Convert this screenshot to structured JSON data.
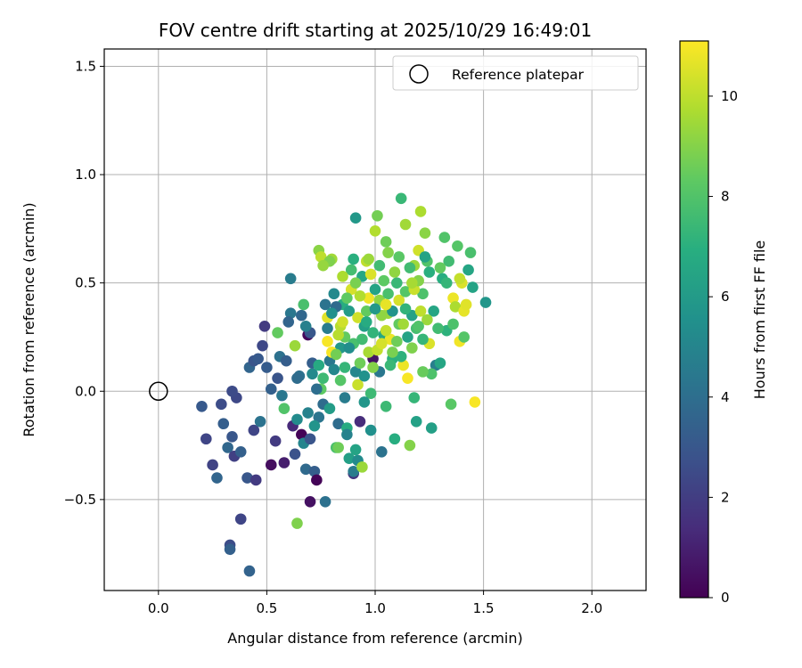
{
  "chart_data": {
    "type": "scatter",
    "title": "FOV centre drift starting at 2025/10/29 16:49:01",
    "xlabel": "Angular distance from reference (arcmin)",
    "ylabel": "Rotation from reference (arcmin)",
    "xlim": [
      -0.25,
      2.25
    ],
    "ylim": [
      -0.92,
      1.58
    ],
    "xticks": [
      0.0,
      0.5,
      1.0,
      1.5,
      2.0
    ],
    "xtick_labels": [
      "0.0",
      "0.5",
      "1.0",
      "1.5",
      "2.0"
    ],
    "yticks": [
      -0.5,
      0.0,
      0.5,
      1.0,
      1.5
    ],
    "ytick_labels": [
      "−0.5",
      "0.0",
      "0.5",
      "1.0",
      "1.5"
    ],
    "grid": true,
    "legend": {
      "position": "top-right",
      "entries": [
        {
          "label": "Reference platepar",
          "marker": "open-circle"
        }
      ]
    },
    "reference_point": {
      "x": 0.0,
      "y": 0.0
    },
    "colorbar": {
      "label": "Hours from first FF file",
      "min": 0,
      "max": 11.1,
      "ticks": [
        0,
        2,
        4,
        6,
        8,
        10
      ],
      "tick_labels": [
        "0",
        "2",
        "4",
        "6",
        "8",
        "10"
      ],
      "colormap": "viridis"
    },
    "points": [
      {
        "x": 0.2,
        "y": -0.07,
        "t": 3.1
      },
      {
        "x": 0.22,
        "y": -0.22,
        "t": 2.3
      },
      {
        "x": 0.25,
        "y": -0.34,
        "t": 2.2
      },
      {
        "x": 0.27,
        "y": -0.4,
        "t": 3.6
      },
      {
        "x": 0.29,
        "y": -0.06,
        "t": 2.6
      },
      {
        "x": 0.3,
        "y": -0.15,
        "t": 3.3
      },
      {
        "x": 0.32,
        "y": -0.26,
        "t": 3.7
      },
      {
        "x": 0.33,
        "y": -0.71,
        "t": 2.6
      },
      {
        "x": 0.33,
        "y": -0.73,
        "t": 3.4
      },
      {
        "x": 0.34,
        "y": -0.21,
        "t": 3.0
      },
      {
        "x": 0.35,
        "y": -0.3,
        "t": 2.1
      },
      {
        "x": 0.38,
        "y": -0.59,
        "t": 2.3
      },
      {
        "x": 0.38,
        "y": -0.28,
        "t": 3.4
      },
      {
        "x": 0.36,
        "y": -0.03,
        "t": 2.4
      },
      {
        "x": 0.34,
        "y": 0.0,
        "t": 2.5
      },
      {
        "x": 0.41,
        "y": -0.4,
        "t": 3.0
      },
      {
        "x": 0.42,
        "y": -0.83,
        "t": 3.5
      },
      {
        "x": 0.44,
        "y": -0.18,
        "t": 2.3
      },
      {
        "x": 0.45,
        "y": -0.41,
        "t": 1.9
      },
      {
        "x": 0.42,
        "y": 0.11,
        "t": 3.6
      },
      {
        "x": 0.44,
        "y": 0.14,
        "t": 2.9
      },
      {
        "x": 0.46,
        "y": 0.15,
        "t": 3.1
      },
      {
        "x": 0.47,
        "y": -0.14,
        "t": 4.2
      },
      {
        "x": 0.48,
        "y": 0.21,
        "t": 2.4
      },
      {
        "x": 0.49,
        "y": 0.3,
        "t": 1.9
      },
      {
        "x": 0.5,
        "y": 0.11,
        "t": 3.2
      },
      {
        "x": 0.52,
        "y": -0.34,
        "t": 0.4
      },
      {
        "x": 0.54,
        "y": -0.23,
        "t": 1.9
      },
      {
        "x": 0.55,
        "y": 0.06,
        "t": 2.9
      },
      {
        "x": 0.56,
        "y": 0.16,
        "t": 4.1
      },
      {
        "x": 0.58,
        "y": -0.33,
        "t": 0.9
      },
      {
        "x": 0.59,
        "y": 0.14,
        "t": 3.3
      },
      {
        "x": 0.61,
        "y": 0.52,
        "t": 4.6
      },
      {
        "x": 0.62,
        "y": -0.16,
        "t": 1.3
      },
      {
        "x": 0.63,
        "y": -0.29,
        "t": 2.8
      },
      {
        "x": 0.64,
        "y": -0.61,
        "t": 8.9
      },
      {
        "x": 0.65,
        "y": 0.07,
        "t": 4.1
      },
      {
        "x": 0.66,
        "y": -0.2,
        "t": 0.1
      },
      {
        "x": 0.67,
        "y": -0.24,
        "t": 5.0
      },
      {
        "x": 0.68,
        "y": -0.36,
        "t": 3.8
      },
      {
        "x": 0.69,
        "y": 0.26,
        "t": 0.2
      },
      {
        "x": 0.7,
        "y": -0.51,
        "t": 0.5
      },
      {
        "x": 0.71,
        "y": 0.13,
        "t": 3.3
      },
      {
        "x": 0.72,
        "y": -0.37,
        "t": 3.3
      },
      {
        "x": 0.73,
        "y": -0.41,
        "t": 0.1
      },
      {
        "x": 0.74,
        "y": 0.65,
        "t": 9.1
      },
      {
        "x": 0.75,
        "y": 0.01,
        "t": 8.3
      },
      {
        "x": 0.76,
        "y": -0.06,
        "t": 3.9
      },
      {
        "x": 0.77,
        "y": -0.51,
        "t": 4.1
      },
      {
        "x": 0.78,
        "y": 0.34,
        "t": 10.6
      },
      {
        "x": 0.79,
        "y": 0.14,
        "t": 4.4
      },
      {
        "x": 0.8,
        "y": 0.61,
        "t": 9.5
      },
      {
        "x": 0.81,
        "y": 0.45,
        "t": 5.2
      },
      {
        "x": 0.82,
        "y": -0.26,
        "t": 7.8
      },
      {
        "x": 0.83,
        "y": -0.15,
        "t": 3.9
      },
      {
        "x": 0.84,
        "y": 0.2,
        "t": 5.9
      },
      {
        "x": 0.85,
        "y": 0.4,
        "t": 6.9
      },
      {
        "x": 0.86,
        "y": 0.25,
        "t": 8.4
      },
      {
        "x": 0.87,
        "y": -0.17,
        "t": 6.8
      },
      {
        "x": 0.88,
        "y": -0.31,
        "t": 6.2
      },
      {
        "x": 0.89,
        "y": 0.56,
        "t": 7.7
      },
      {
        "x": 0.9,
        "y": -0.38,
        "t": 1.7
      },
      {
        "x": 0.9,
        "y": -0.37,
        "t": 4.6
      },
      {
        "x": 0.91,
        "y": 0.8,
        "t": 5.9
      },
      {
        "x": 0.92,
        "y": -0.32,
        "t": 5.3
      },
      {
        "x": 0.92,
        "y": 0.03,
        "t": 10.2
      },
      {
        "x": 0.93,
        "y": -0.14,
        "t": 1.4
      },
      {
        "x": 0.94,
        "y": -0.35,
        "t": 9.4
      },
      {
        "x": 0.95,
        "y": 0.3,
        "t": 6.2
      },
      {
        "x": 0.96,
        "y": 0.6,
        "t": 10.0
      },
      {
        "x": 0.97,
        "y": 0.43,
        "t": 10.9
      },
      {
        "x": 0.98,
        "y": -0.01,
        "t": 7.5
      },
      {
        "x": 0.99,
        "y": 0.15,
        "t": 0.6
      },
      {
        "x": 1.0,
        "y": 0.74,
        "t": 9.8
      },
      {
        "x": 1.01,
        "y": 0.81,
        "t": 8.7
      },
      {
        "x": 1.02,
        "y": 0.42,
        "t": 9.2
      },
      {
        "x": 1.03,
        "y": -0.28,
        "t": 4.2
      },
      {
        "x": 1.04,
        "y": 0.26,
        "t": 6.6
      },
      {
        "x": 1.05,
        "y": 0.69,
        "t": 8.6
      },
      {
        "x": 1.06,
        "y": 0.36,
        "t": 9.4
      },
      {
        "x": 1.07,
        "y": 0.24,
        "t": 10.8
      },
      {
        "x": 1.08,
        "y": 0.15,
        "t": 7.0
      },
      {
        "x": 1.09,
        "y": -0.22,
        "t": 6.9
      },
      {
        "x": 1.1,
        "y": 0.5,
        "t": 7.4
      },
      {
        "x": 1.11,
        "y": 0.31,
        "t": 8.4
      },
      {
        "x": 1.12,
        "y": 0.89,
        "t": 7.4
      },
      {
        "x": 1.13,
        "y": 0.12,
        "t": 10.8
      },
      {
        "x": 1.14,
        "y": 0.77,
        "t": 9.5
      },
      {
        "x": 1.15,
        "y": 0.06,
        "t": 11.0
      },
      {
        "x": 1.16,
        "y": -0.25,
        "t": 9.0
      },
      {
        "x": 1.17,
        "y": 0.35,
        "t": 6.3
      },
      {
        "x": 1.18,
        "y": 0.58,
        "t": 9.4
      },
      {
        "x": 1.19,
        "y": -0.14,
        "t": 6.3
      },
      {
        "x": 1.2,
        "y": 0.65,
        "t": 10.3
      },
      {
        "x": 1.21,
        "y": 0.83,
        "t": 9.7
      },
      {
        "x": 1.22,
        "y": 0.45,
        "t": 7.9
      },
      {
        "x": 1.23,
        "y": 0.73,
        "t": 9.1
      },
      {
        "x": 1.24,
        "y": 0.6,
        "t": 8.0
      },
      {
        "x": 1.25,
        "y": 0.22,
        "t": 10.5
      },
      {
        "x": 1.26,
        "y": -0.17,
        "t": 6.2
      },
      {
        "x": 1.27,
        "y": 0.37,
        "t": 6.5
      },
      {
        "x": 1.28,
        "y": 0.12,
        "t": 4.7
      },
      {
        "x": 1.3,
        "y": 0.13,
        "t": 6.5
      },
      {
        "x": 1.31,
        "y": 0.52,
        "t": 6.9
      },
      {
        "x": 1.32,
        "y": 0.71,
        "t": 8.0
      },
      {
        "x": 1.33,
        "y": 0.28,
        "t": 7.1
      },
      {
        "x": 1.34,
        "y": 0.6,
        "t": 7.6
      },
      {
        "x": 1.35,
        "y": -0.06,
        "t": 8.2
      },
      {
        "x": 1.36,
        "y": 0.43,
        "t": 10.8
      },
      {
        "x": 1.37,
        "y": 0.39,
        "t": 9.7
      },
      {
        "x": 1.38,
        "y": 0.67,
        "t": 8.1
      },
      {
        "x": 1.39,
        "y": 0.23,
        "t": 10.9
      },
      {
        "x": 1.4,
        "y": 0.5,
        "t": 10.5
      },
      {
        "x": 1.41,
        "y": 0.37,
        "t": 10.7
      },
      {
        "x": 1.42,
        "y": 0.4,
        "t": 10.6
      },
      {
        "x": 1.43,
        "y": 0.56,
        "t": 6.5
      },
      {
        "x": 1.44,
        "y": 0.64,
        "t": 7.8
      },
      {
        "x": 1.45,
        "y": 0.48,
        "t": 6.4
      },
      {
        "x": 1.46,
        "y": -0.05,
        "t": 11.0
      },
      {
        "x": 1.51,
        "y": 0.41,
        "t": 5.8
      },
      {
        "x": 0.55,
        "y": 0.27,
        "t": 8.4
      },
      {
        "x": 0.61,
        "y": 0.36,
        "t": 4.4
      },
      {
        "x": 0.63,
        "y": 0.21,
        "t": 9.4
      },
      {
        "x": 0.66,
        "y": 0.35,
        "t": 3.7
      },
      {
        "x": 0.67,
        "y": 0.4,
        "t": 7.8
      },
      {
        "x": 0.7,
        "y": 0.27,
        "t": 3.0
      },
      {
        "x": 0.71,
        "y": 0.08,
        "t": 5.2
      },
      {
        "x": 0.73,
        "y": 0.01,
        "t": 4.0
      },
      {
        "x": 0.74,
        "y": -0.12,
        "t": 4.3
      },
      {
        "x": 0.75,
        "y": 0.62,
        "t": 10.0
      },
      {
        "x": 0.77,
        "y": 0.4,
        "t": 4.2
      },
      {
        "x": 0.78,
        "y": 0.23,
        "t": 11.0
      },
      {
        "x": 0.79,
        "y": 0.6,
        "t": 8.9
      },
      {
        "x": 0.8,
        "y": 0.18,
        "t": 11.0
      },
      {
        "x": 0.81,
        "y": 0.1,
        "t": 5.1
      },
      {
        "x": 0.82,
        "y": 0.39,
        "t": 3.8
      },
      {
        "x": 0.83,
        "y": 0.26,
        "t": 9.9
      },
      {
        "x": 0.84,
        "y": 0.05,
        "t": 8.1
      },
      {
        "x": 0.85,
        "y": 0.53,
        "t": 9.7
      },
      {
        "x": 0.86,
        "y": 0.11,
        "t": 7.3
      },
      {
        "x": 0.87,
        "y": -0.2,
        "t": 4.9
      },
      {
        "x": 0.88,
        "y": 0.37,
        "t": 6.1
      },
      {
        "x": 0.89,
        "y": 0.47,
        "t": 10.4
      },
      {
        "x": 0.9,
        "y": 0.22,
        "t": 7.8
      },
      {
        "x": 0.91,
        "y": 0.09,
        "t": 5.1
      },
      {
        "x": 0.92,
        "y": 0.34,
        "t": 10.3
      },
      {
        "x": 0.93,
        "y": 0.13,
        "t": 8.6
      },
      {
        "x": 0.94,
        "y": 0.53,
        "t": 6.6
      },
      {
        "x": 0.95,
        "y": 0.07,
        "t": 5.6
      },
      {
        "x": 0.96,
        "y": 0.37,
        "t": 8.4
      },
      {
        "x": 0.97,
        "y": 0.18,
        "t": 9.6
      },
      {
        "x": 0.98,
        "y": 0.54,
        "t": 10.5
      },
      {
        "x": 0.99,
        "y": 0.27,
        "t": 7.2
      },
      {
        "x": 1.0,
        "y": 0.47,
        "t": 6.4
      },
      {
        "x": 1.01,
        "y": 0.19,
        "t": 10.1
      },
      {
        "x": 1.02,
        "y": 0.09,
        "t": 4.4
      },
      {
        "x": 1.03,
        "y": 0.35,
        "t": 9.2
      },
      {
        "x": 1.04,
        "y": 0.51,
        "t": 8.3
      },
      {
        "x": 1.05,
        "y": 0.28,
        "t": 10.1
      },
      {
        "x": 1.06,
        "y": 0.45,
        "t": 7.8
      },
      {
        "x": 1.07,
        "y": 0.12,
        "t": 7.4
      },
      {
        "x": 1.08,
        "y": 0.37,
        "t": 5.7
      },
      {
        "x": 1.09,
        "y": 0.55,
        "t": 9.2
      },
      {
        "x": 1.1,
        "y": 0.23,
        "t": 8.6
      },
      {
        "x": 1.11,
        "y": 0.42,
        "t": 10.4
      },
      {
        "x": 1.12,
        "y": 0.16,
        "t": 7.1
      },
      {
        "x": 1.13,
        "y": 0.31,
        "t": 9.5
      },
      {
        "x": 1.14,
        "y": 0.46,
        "t": 8.1
      },
      {
        "x": 1.15,
        "y": 0.25,
        "t": 6.4
      },
      {
        "x": 1.16,
        "y": 0.57,
        "t": 7.6
      },
      {
        "x": 1.17,
        "y": 0.2,
        "t": 8.9
      },
      {
        "x": 1.18,
        "y": 0.47,
        "t": 10.2
      },
      {
        "x": 1.19,
        "y": 0.29,
        "t": 7.7
      },
      {
        "x": 1.2,
        "y": 0.51,
        "t": 9.0
      },
      {
        "x": 1.21,
        "y": 0.37,
        "t": 10.0
      },
      {
        "x": 1.22,
        "y": 0.24,
        "t": 7.3
      },
      {
        "x": 1.23,
        "y": 0.62,
        "t": 6.4
      },
      {
        "x": 1.24,
        "y": 0.33,
        "t": 9.4
      },
      {
        "x": 1.25,
        "y": 0.55,
        "t": 7.0
      },
      {
        "x": 1.26,
        "y": 0.08,
        "t": 7.9
      },
      {
        "x": 0.76,
        "y": 0.06,
        "t": 7.5
      },
      {
        "x": 0.8,
        "y": 0.36,
        "t": 5.5
      },
      {
        "x": 0.84,
        "y": 0.3,
        "t": 9.9
      },
      {
        "x": 0.87,
        "y": 0.43,
        "t": 8.3
      },
      {
        "x": 0.9,
        "y": 0.61,
        "t": 7.0
      },
      {
        "x": 0.93,
        "y": 0.44,
        "t": 9.8
      },
      {
        "x": 0.96,
        "y": 0.32,
        "t": 6.8
      },
      {
        "x": 0.99,
        "y": 0.11,
        "t": 9.0
      },
      {
        "x": 1.02,
        "y": 0.58,
        "t": 7.6
      },
      {
        "x": 1.05,
        "y": 0.4,
        "t": 10.7
      },
      {
        "x": 1.08,
        "y": 0.18,
        "t": 8.8
      },
      {
        "x": 1.11,
        "y": 0.62,
        "t": 8.2
      },
      {
        "x": 1.14,
        "y": 0.38,
        "t": 7.2
      },
      {
        "x": 1.17,
        "y": 0.5,
        "t": 9.6
      },
      {
        "x": 1.2,
        "y": 0.3,
        "t": 8.0
      },
      {
        "x": 0.86,
        "y": -0.03,
        "t": 4.6
      },
      {
        "x": 0.95,
        "y": -0.05,
        "t": 5.8
      },
      {
        "x": 1.05,
        "y": -0.07,
        "t": 7.5
      },
      {
        "x": 0.79,
        "y": -0.08,
        "t": 6.1
      },
      {
        "x": 0.69,
        "y": -0.1,
        "t": 4.9
      },
      {
        "x": 0.58,
        "y": -0.08,
        "t": 8.0
      },
      {
        "x": 0.57,
        "y": -0.02,
        "t": 4.4
      },
      {
        "x": 0.52,
        "y": 0.01,
        "t": 3.4
      },
      {
        "x": 0.64,
        "y": -0.13,
        "t": 5.3
      },
      {
        "x": 0.72,
        "y": -0.16,
        "t": 5.7
      },
      {
        "x": 0.83,
        "y": -0.26,
        "t": 8.6
      },
      {
        "x": 0.91,
        "y": -0.27,
        "t": 6.4
      },
      {
        "x": 0.98,
        "y": -0.18,
        "t": 5.5
      },
      {
        "x": 1.18,
        "y": -0.03,
        "t": 7.3
      },
      {
        "x": 1.22,
        "y": 0.09,
        "t": 8.5
      },
      {
        "x": 1.29,
        "y": 0.29,
        "t": 7.6
      },
      {
        "x": 1.3,
        "y": 0.57,
        "t": 8.4
      },
      {
        "x": 1.33,
        "y": 0.5,
        "t": 7.3
      },
      {
        "x": 1.36,
        "y": 0.31,
        "t": 7.9
      },
      {
        "x": 1.41,
        "y": 0.25,
        "t": 8.1
      },
      {
        "x": 1.39,
        "y": 0.52,
        "t": 10.1
      },
      {
        "x": 0.6,
        "y": 0.32,
        "t": 3.6
      },
      {
        "x": 0.64,
        "y": 0.06,
        "t": 3.9
      },
      {
        "x": 0.68,
        "y": 0.3,
        "t": 4.8
      },
      {
        "x": 0.7,
        "y": -0.22,
        "t": 2.9
      },
      {
        "x": 0.74,
        "y": 0.12,
        "t": 6.7
      },
      {
        "x": 0.76,
        "y": 0.58,
        "t": 9.3
      },
      {
        "x": 0.78,
        "y": 0.29,
        "t": 4.6
      },
      {
        "x": 0.82,
        "y": 0.17,
        "t": 8.7
      },
      {
        "x": 0.85,
        "y": 0.32,
        "t": 10.3
      },
      {
        "x": 0.88,
        "y": 0.2,
        "t": 5.4
      },
      {
        "x": 0.91,
        "y": 0.5,
        "t": 8.8
      },
      {
        "x": 0.94,
        "y": 0.24,
        "t": 7.6
      },
      {
        "x": 0.97,
        "y": 0.61,
        "t": 9.4
      },
      {
        "x": 1.0,
        "y": 0.38,
        "t": 5.9
      },
      {
        "x": 1.03,
        "y": 0.22,
        "t": 10.4
      },
      {
        "x": 1.06,
        "y": 0.64,
        "t": 9.0
      }
    ]
  }
}
